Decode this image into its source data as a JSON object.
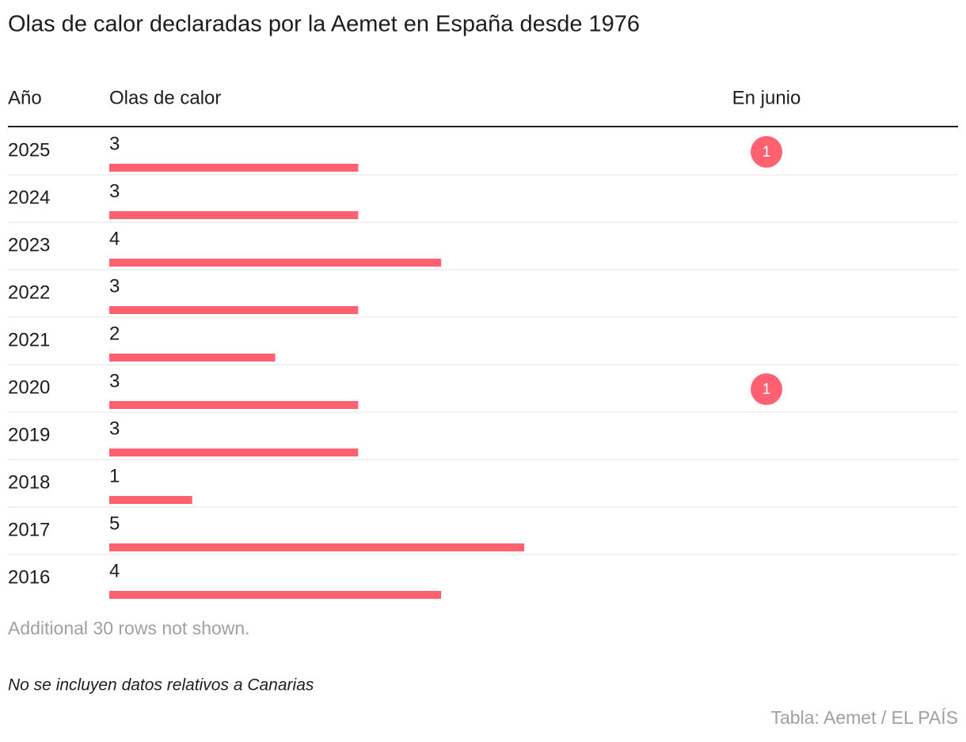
{
  "title": "Olas de calor declaradas por la Aemet en España desde 1976",
  "table": {
    "headers": [
      "Año",
      "Olas de calor",
      "En junio"
    ],
    "bar_color": "#ff6170",
    "rows": [
      [
        "2025",
        3,
        1
      ],
      [
        "2024",
        3,
        null
      ],
      [
        "2023",
        4,
        null
      ],
      [
        "2022",
        3,
        null
      ],
      [
        "2021",
        2,
        null
      ],
      [
        "2020",
        3,
        1
      ],
      [
        "2019",
        3,
        null
      ],
      [
        "2018",
        1,
        null
      ],
      [
        "2017",
        5,
        null
      ],
      [
        "2016",
        4,
        null
      ]
    ]
  },
  "more_rows": "Additional 30 rows not shown.",
  "note": "No se incluyen datos relativos a Canarias",
  "source": "Tabla: Aemet / EL PAÍS"
}
